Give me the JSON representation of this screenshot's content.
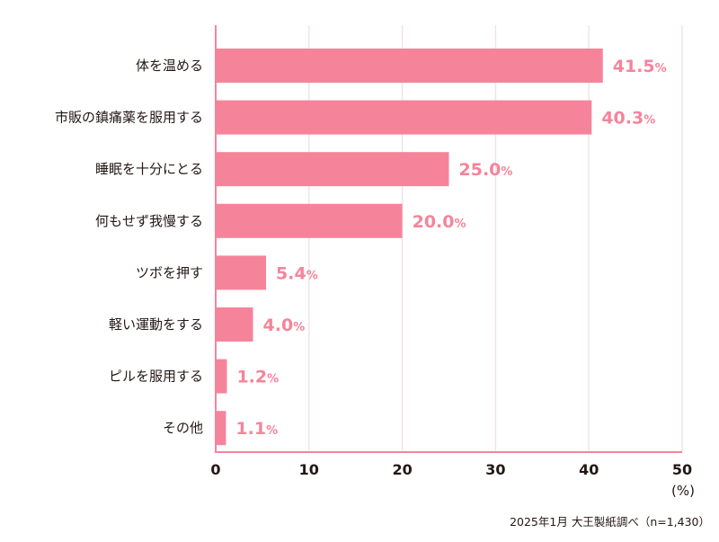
{
  "chart_data": {
    "type": "bar",
    "orientation": "horizontal",
    "categories": [
      "体を温める",
      "市販の鎮痛薬を服用する",
      "睡眠を十分にとる",
      "何もせず我慢する",
      "ツボを押す",
      "軽い運動をする",
      "ピルを服用する",
      "その他"
    ],
    "values": [
      41.5,
      40.3,
      25.0,
      20.0,
      5.4,
      4.0,
      1.2,
      1.1
    ],
    "value_suffix": "%",
    "xlim": [
      0,
      50
    ],
    "xticks": [
      "0",
      "10",
      "20",
      "30",
      "40",
      "50"
    ],
    "xlabel": "(%)",
    "grid": true,
    "colors": {
      "bar": "#f5849b",
      "label": "#f5849b",
      "grid": "#f0e4e8",
      "axis": "#f5849b"
    }
  },
  "source_note": "2025年1月 大王製紙調べ（n=1,430）"
}
